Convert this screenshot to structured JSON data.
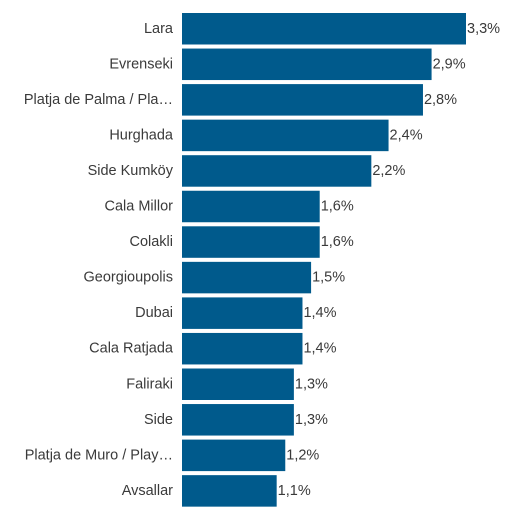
{
  "chart_data": {
    "type": "bar",
    "orientation": "horizontal",
    "categories": [
      "Lara",
      "Evrenseki",
      "Platja de Palma / Pla…",
      "Hurghada",
      "Side Kumköy",
      "Cala Millor",
      "Colakli",
      "Georgioupolis",
      "Dubai",
      "Cala Ratjada",
      "Faliraki",
      "Side",
      "Platja de Muro / Play…",
      "Avsallar"
    ],
    "values": [
      3.3,
      2.9,
      2.8,
      2.4,
      2.2,
      1.6,
      1.6,
      1.5,
      1.4,
      1.4,
      1.3,
      1.3,
      1.2,
      1.1
    ],
    "value_labels": [
      "3,3%",
      "2,9%",
      "2,8%",
      "2,4%",
      "2,2%",
      "1,6%",
      "1,6%",
      "1,5%",
      "1,4%",
      "1,4%",
      "1,3%",
      "1,3%",
      "1,2%",
      "1,1%"
    ],
    "xlim": [
      0,
      3.3
    ],
    "bar_color": "#005a8c",
    "grid": false,
    "legend": "none"
  }
}
